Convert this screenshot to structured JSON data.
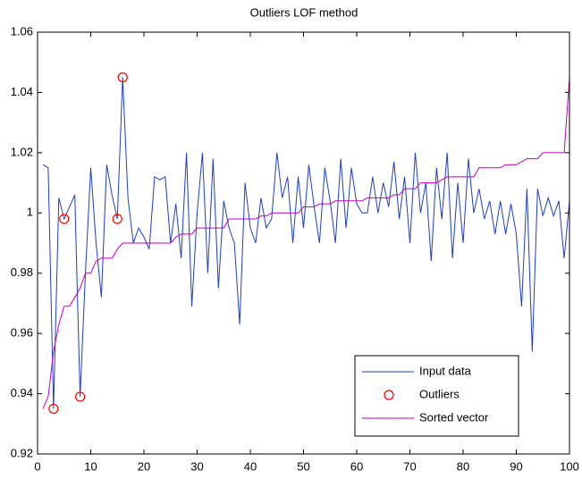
{
  "chart_data": {
    "type": "line",
    "title": "Outliers LOF method",
    "x": [
      1,
      2,
      3,
      4,
      5,
      6,
      7,
      8,
      9,
      10,
      11,
      12,
      13,
      14,
      15,
      16,
      17,
      18,
      19,
      20,
      21,
      22,
      23,
      24,
      25,
      26,
      27,
      28,
      29,
      30,
      31,
      32,
      33,
      34,
      35,
      36,
      37,
      38,
      39,
      40,
      41,
      42,
      43,
      44,
      45,
      46,
      47,
      48,
      49,
      50,
      51,
      52,
      53,
      54,
      55,
      56,
      57,
      58,
      59,
      60,
      61,
      62,
      63,
      64,
      65,
      66,
      67,
      68,
      69,
      70,
      71,
      72,
      73,
      74,
      75,
      76,
      77,
      78,
      79,
      80,
      81,
      82,
      83,
      84,
      85,
      86,
      87,
      88,
      89,
      90,
      91,
      92,
      93,
      94,
      95,
      96,
      97,
      98,
      99,
      100
    ],
    "series": [
      {
        "name": "Input data",
        "color": "#1f3fbf",
        "values": [
          1.016,
          1.015,
          0.935,
          1.005,
          0.998,
          1.002,
          1.006,
          0.939,
          0.98,
          1.015,
          0.99,
          0.972,
          1.016,
          1.006,
          0.998,
          1.045,
          1.005,
          0.99,
          0.995,
          0.992,
          0.988,
          1.012,
          1.011,
          1.012,
          0.99,
          1.003,
          0.985,
          1.02,
          0.969,
          1.0,
          1.02,
          0.98,
          1.018,
          0.975,
          1.004,
          0.995,
          0.99,
          0.963,
          1.01,
          0.995,
          0.99,
          1.005,
          0.995,
          0.998,
          1.02,
          1.005,
          1.012,
          0.99,
          1.012,
          0.995,
          1.016,
          1.002,
          0.99,
          1.015,
          1.004,
          0.99,
          1.018,
          0.995,
          1.015,
          1.003,
          1.0,
          1.0,
          1.012,
          1.0,
          1.01,
          1.002,
          1.017,
          0.998,
          1.012,
          0.99,
          1.02,
          1.0,
          1.01,
          0.984,
          1.015,
          0.998,
          1.02,
          0.985,
          1.01,
          0.99,
          1.018,
          1.0,
          1.008,
          0.998,
          1.004,
          0.993,
          1.004,
          0.993,
          1.003,
          0.993,
          0.969,
          1.008,
          0.954,
          1.008,
          0.999,
          1.005,
          0.999,
          1.004,
          0.985,
          1.004
        ]
      },
      {
        "name": "Outliers",
        "color": "#ff0000",
        "marker": "circle",
        "x": [
          3,
          5,
          8,
          15,
          16
        ],
        "values": [
          0.935,
          0.998,
          0.939,
          0.998,
          1.045
        ]
      },
      {
        "name": "Sorted vector",
        "color": "#bf00bf",
        "values": [
          0.935,
          0.939,
          0.954,
          0.963,
          0.969,
          0.969,
          0.972,
          0.975,
          0.98,
          0.98,
          0.984,
          0.985,
          0.985,
          0.985,
          0.988,
          0.99,
          0.99,
          0.99,
          0.99,
          0.99,
          0.99,
          0.99,
          0.99,
          0.99,
          0.99,
          0.992,
          0.993,
          0.993,
          0.993,
          0.995,
          0.995,
          0.995,
          0.995,
          0.995,
          0.995,
          0.998,
          0.998,
          0.998,
          0.998,
          0.998,
          0.998,
          0.999,
          0.999,
          1.0,
          1.0,
          1.0,
          1.0,
          1.0,
          1.0,
          1.002,
          1.002,
          1.002,
          1.003,
          1.003,
          1.003,
          1.004,
          1.004,
          1.004,
          1.004,
          1.004,
          1.004,
          1.005,
          1.005,
          1.005,
          1.005,
          1.005,
          1.006,
          1.006,
          1.008,
          1.008,
          1.008,
          1.01,
          1.01,
          1.01,
          1.01,
          1.011,
          1.012,
          1.012,
          1.012,
          1.012,
          1.012,
          1.012,
          1.015,
          1.015,
          1.015,
          1.015,
          1.015,
          1.016,
          1.016,
          1.016,
          1.017,
          1.018,
          1.018,
          1.018,
          1.02,
          1.02,
          1.02,
          1.02,
          1.02,
          1.045
        ]
      }
    ],
    "xlim": [
      0,
      100
    ],
    "xticks": [
      0,
      10,
      20,
      30,
      40,
      50,
      60,
      70,
      80,
      90,
      100
    ],
    "ylim": [
      0.92,
      1.06
    ],
    "yticks": [
      0.92,
      0.94,
      0.96,
      0.98,
      1,
      1.02,
      1.04,
      1.06
    ],
    "grid": false,
    "legend": "lower right"
  }
}
